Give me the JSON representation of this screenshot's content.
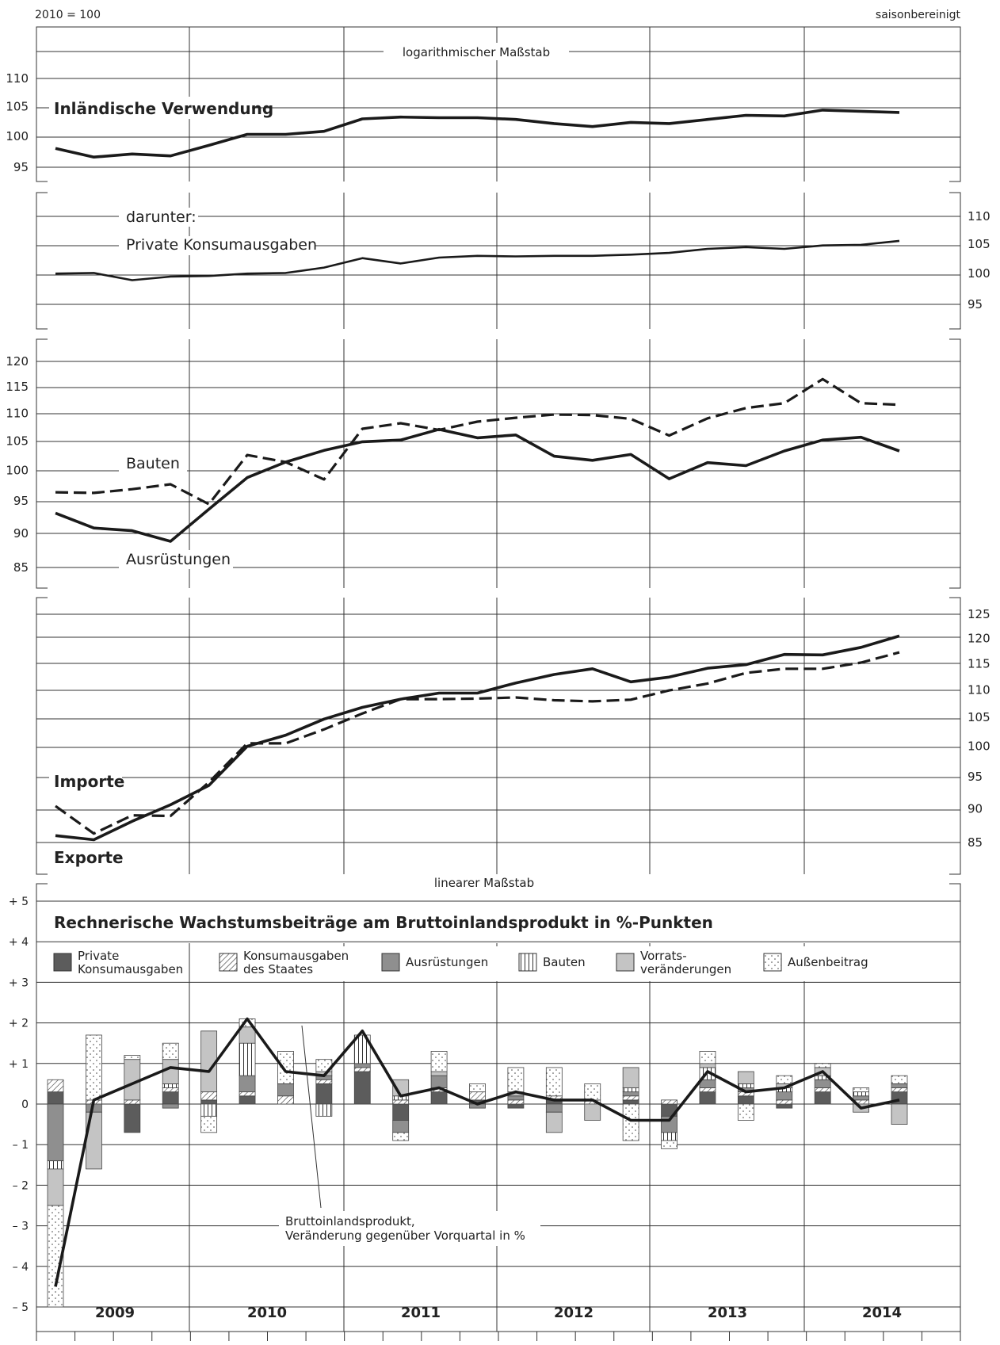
{
  "header": {
    "left": "2010 = 100",
    "right": "saisonbereinigt"
  },
  "chart_data": [
    {
      "type": "line",
      "panel": "inlaendische-verwendung",
      "scale_label": "logarithmischer Maßstab",
      "scale": "log",
      "yticks": [
        "95",
        "100",
        "105",
        "110"
      ],
      "ylim": [
        92,
        113
      ],
      "x_quarters": [
        "2009Q1",
        "2009Q2",
        "2009Q3",
        "2009Q4",
        "2010Q1",
        "2010Q2",
        "2010Q3",
        "2010Q4",
        "2011Q1",
        "2011Q2",
        "2011Q3",
        "2011Q4",
        "2012Q1",
        "2012Q2",
        "2012Q3",
        "2012Q4",
        "2013Q1",
        "2013Q2",
        "2013Q3",
        "2013Q4",
        "2014Q1",
        "2014Q2",
        "2014Q3"
      ],
      "series": [
        {
          "name": "Inländische Verwendung",
          "style": "solid-bold",
          "values": [
            98.0,
            96.6,
            97.1,
            96.8,
            98.5,
            100.3,
            100.3,
            100.8,
            102.9,
            103.2,
            103.1,
            103.1,
            102.8,
            102.1,
            101.6,
            102.3,
            102.1,
            102.8,
            103.5,
            103.4,
            104.4,
            104.2,
            104.0
          ]
        }
      ]
    },
    {
      "type": "line",
      "panel": "private-konsumausgaben",
      "label_prefix": "darunter:",
      "scale": "log",
      "yticks": [
        "95",
        "100",
        "105",
        "110"
      ],
      "ylim": [
        92,
        113
      ],
      "series": [
        {
          "name": "Private Konsumausgaben",
          "style": "solid",
          "values": [
            100.0,
            100.1,
            98.9,
            99.5,
            99.6,
            100.0,
            100.1,
            101.0,
            102.6,
            101.7,
            102.7,
            103.0,
            102.9,
            103.0,
            103.0,
            103.2,
            103.5,
            104.2,
            104.5,
            104.2,
            104.8,
            104.9,
            105.6
          ]
        }
      ]
    },
    {
      "type": "line",
      "panel": "investitionen",
      "scale": "log",
      "yticks": [
        "85",
        "90",
        "95",
        "100",
        "105",
        "110",
        "115",
        "120"
      ],
      "ylim": [
        83.3,
        123
      ],
      "series": [
        {
          "name": "Bauten",
          "style": "dashed",
          "values": [
            96.4,
            96.3,
            96.9,
            97.7,
            94.5,
            102.6,
            101.4,
            98.5,
            107.2,
            108.2,
            107.0,
            108.5,
            109.2,
            109.8,
            109.7,
            109.0,
            106.0,
            109.1,
            111.0,
            111.9,
            116.5,
            111.9,
            111.6
          ]
        },
        {
          "name": "Ausrüstungen",
          "style": "solid-bold",
          "values": [
            93.1,
            90.8,
            90.4,
            88.8,
            93.7,
            98.8,
            101.4,
            103.4,
            104.9,
            105.2,
            107.1,
            105.6,
            106.1,
            102.4,
            101.7,
            102.7,
            98.6,
            101.3,
            100.8,
            103.3,
            105.2,
            105.7,
            103.3
          ]
        }
      ]
    },
    {
      "type": "line",
      "panel": "aussenhandel",
      "scale": "log",
      "yticks": [
        "85",
        "90",
        "95",
        "100",
        "105",
        "110",
        "115",
        "120",
        "125"
      ],
      "ylim": [
        82.9,
        129
      ],
      "series": [
        {
          "name": "Importe",
          "style": "dashed",
          "values": [
            90.4,
            86.3,
            89.0,
            88.9,
            94.1,
            100.5,
            100.5,
            102.9,
            105.7,
            108.3,
            108.3,
            108.4,
            108.6,
            108.1,
            107.9,
            108.2,
            109.9,
            111.2,
            113.2,
            114.0,
            114.0,
            115.2,
            117.2
          ]
        },
        {
          "name": "Exporte",
          "style": "solid-bold",
          "values": [
            86.0,
            85.4,
            88.1,
            90.6,
            93.6,
            100.0,
            101.9,
            104.7,
            106.8,
            108.3,
            109.4,
            109.4,
            111.3,
            112.9,
            114.0,
            111.5,
            112.4,
            114.1,
            114.8,
            116.8,
            116.7,
            118.2,
            120.5
          ]
        }
      ]
    },
    {
      "type": "bar",
      "panel": "wachstumsbeitraege",
      "scale_label": "linearer Maßstab",
      "title": "Rechnerische Wachstumsbeiträge am Bruttoinlandsprodukt in %-Punkten",
      "ylim": [
        -5.6,
        5.4
      ],
      "yticks": [
        "+ 5",
        "+ 4",
        "+ 3",
        "+ 2",
        "+ 1",
        "0",
        "– 1",
        "– 2",
        "– 3",
        "– 4",
        "– 5"
      ],
      "legend": [
        {
          "key": "pk",
          "label": [
            "Private",
            "Konsumausgaben"
          ],
          "fill": "#5c5c5c"
        },
        {
          "key": "ks",
          "label": [
            "Konsumausgaben",
            "des Staates"
          ],
          "fill": "hatch"
        },
        {
          "key": "au",
          "label": [
            "Ausrüstungen"
          ],
          "fill": "#8f8f8f"
        },
        {
          "key": "ba",
          "label": [
            "Bauten"
          ],
          "fill": "vertical-lines"
        },
        {
          "key": "vo",
          "label": [
            "Vorrats-",
            "veränderungen"
          ],
          "fill": "#c4c4c4"
        },
        {
          "key": "ab",
          "label": [
            "Außenbeitrag"
          ],
          "fill": "dots"
        }
      ],
      "annotation": [
        "Bruttoinlandsprodukt,",
        "Veränderung gegenüber Vorquartal in %"
      ],
      "years": [
        "2009",
        "2010",
        "2011",
        "2012",
        "2013",
        "2014"
      ],
      "series": [
        {
          "name": "Private Konsumausgaben",
          "key": "pk",
          "values": [
            0.3,
            0.0,
            -0.7,
            0.3,
            0.1,
            0.2,
            0.0,
            0.5,
            0.8,
            -0.4,
            0.3,
            0.1,
            -0.1,
            0.1,
            0.0,
            0.1,
            -0.3,
            0.3,
            0.2,
            -0.1,
            0.3,
            0.0,
            0.3
          ]
        },
        {
          "name": "Konsumausgaben des Staates",
          "key": "ks",
          "values": [
            0.3,
            0.1,
            0.1,
            0.1,
            0.2,
            0.1,
            0.2,
            0.1,
            0.1,
            0.1,
            0.1,
            0.2,
            0.1,
            0.1,
            0.1,
            0.1,
            0.1,
            0.1,
            0.1,
            0.1,
            0.1,
            0.1,
            0.1
          ]
        },
        {
          "name": "Ausrüstungen",
          "key": "au",
          "values": [
            -1.4,
            -0.2,
            0.0,
            -0.1,
            0.0,
            0.4,
            0.3,
            0.1,
            0.1,
            -0.3,
            0.3,
            -0.1,
            0.1,
            -0.2,
            0.0,
            0.1,
            -0.4,
            0.2,
            0.1,
            0.2,
            0.2,
            0.1,
            0.1
          ]
        },
        {
          "name": "Bauten",
          "key": "ba",
          "values": [
            -0.2,
            0.0,
            0.0,
            0.1,
            -0.3,
            0.8,
            0.0,
            -0.3,
            0.7,
            0.1,
            0.0,
            0.0,
            0.0,
            0.0,
            0.0,
            0.1,
            -0.2,
            0.3,
            0.1,
            0.1,
            0.1,
            0.1,
            0.0
          ]
        },
        {
          "name": "Vorratsveränderungen",
          "key": "vo",
          "values": [
            -0.9,
            -1.4,
            1.0,
            0.6,
            1.5,
            0.4,
            0.0,
            0.1,
            0.0,
            0.4,
            0.1,
            0.0,
            0.1,
            -0.5,
            -0.4,
            0.5,
            0.0,
            0.1,
            0.3,
            0.1,
            0.2,
            -0.2,
            -0.5
          ]
        },
        {
          "name": "Außenbeitrag",
          "key": "ab",
          "values": [
            -2.5,
            1.6,
            0.1,
            0.4,
            -0.4,
            0.2,
            0.8,
            0.3,
            0.0,
            -0.2,
            0.5,
            0.2,
            0.6,
            0.7,
            0.4,
            -0.9,
            -0.2,
            0.3,
            -0.4,
            0.2,
            0.1,
            0.1,
            0.2
          ]
        },
        {
          "name": "Bruttoinlandsprodukt",
          "key": "bip",
          "type": "line",
          "values": [
            -4.5,
            0.1,
            0.5,
            0.9,
            0.8,
            2.1,
            0.8,
            0.7,
            1.8,
            0.2,
            0.4,
            0.0,
            0.3,
            0.1,
            0.1,
            -0.4,
            -0.4,
            0.8,
            0.3,
            0.4,
            0.8,
            -0.1,
            0.1
          ]
        }
      ]
    }
  ]
}
